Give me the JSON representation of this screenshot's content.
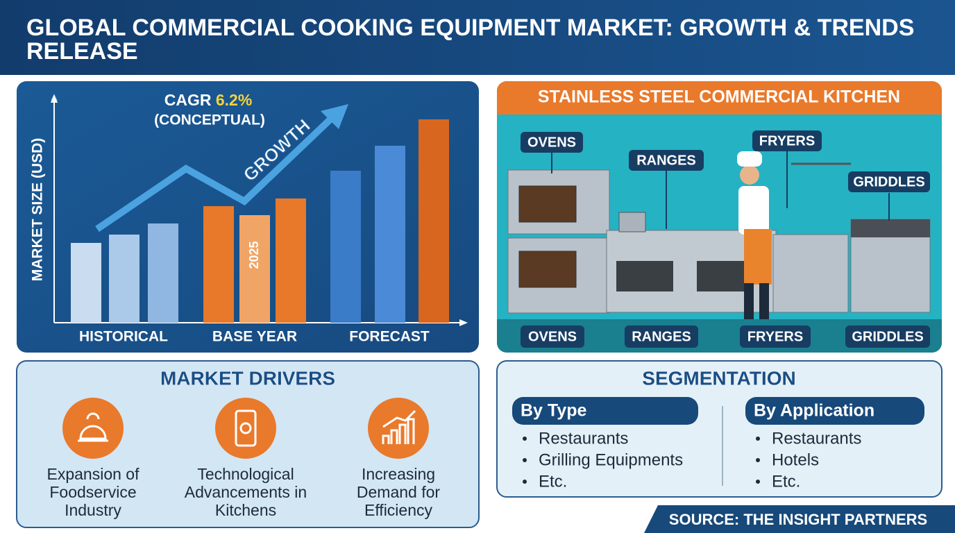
{
  "header": {
    "title_lines": [
      "GLOBAL COMMERCIAL COOKING EQUIPMENT MARKET: GROWTH & TRENDS",
      "RELEASE"
    ]
  },
  "chart_data": {
    "type": "bar",
    "y_label": "MARKET SIZE (USD)",
    "cagr_label": "CAGR",
    "cagr": "6.2%",
    "cagr_note": "(CONCEPTUAL)",
    "arrow_label": "GROWTH",
    "groups": [
      "HISTORICAL",
      "BASE YEAR",
      "FORECAST"
    ],
    "categories": [
      null,
      null,
      null,
      null,
      "2025",
      null,
      null,
      null,
      null
    ],
    "values": [
      115,
      127,
      143,
      168,
      155,
      179,
      219,
      255,
      293
    ],
    "colors": [
      "#c9dcf0",
      "#abc9e9",
      "#8fb7e1",
      "#e8782a",
      "#f0a566",
      "#e8782a",
      "#3b7cc9",
      "#4a8ad6",
      "#d9661e"
    ],
    "ylim": [
      0,
      325
    ]
  },
  "kitchen": {
    "title": "STAINLESS STEEL COMMERCIAL KITCHEN",
    "top_labels": [
      "OVENS",
      "RANGES",
      "FRYERS",
      "GRIDDLES"
    ],
    "bottom_labels": [
      "OVENS",
      "RANGES",
      "FRYERS",
      "GRIDDLES"
    ]
  },
  "drivers": {
    "title": "MARKET DRIVERS",
    "items": [
      [
        "Expansion of",
        "Foodservice",
        "Industry"
      ],
      [
        "Technological",
        "Advancements in",
        "Kitchens"
      ],
      [
        "Increasing",
        "Demand for",
        "Efficiency"
      ]
    ]
  },
  "segmentation": {
    "title": "SEGMENTATION",
    "columns": [
      {
        "heading": "By Type",
        "items": [
          "Restaurants",
          "Grilling Equipments",
          "Etc."
        ]
      },
      {
        "heading": "By Application",
        "items": [
          "Restaurants",
          "Hotels",
          "Etc."
        ]
      }
    ]
  },
  "source": "SOURCE: THE INSIGHT PARTNERS"
}
